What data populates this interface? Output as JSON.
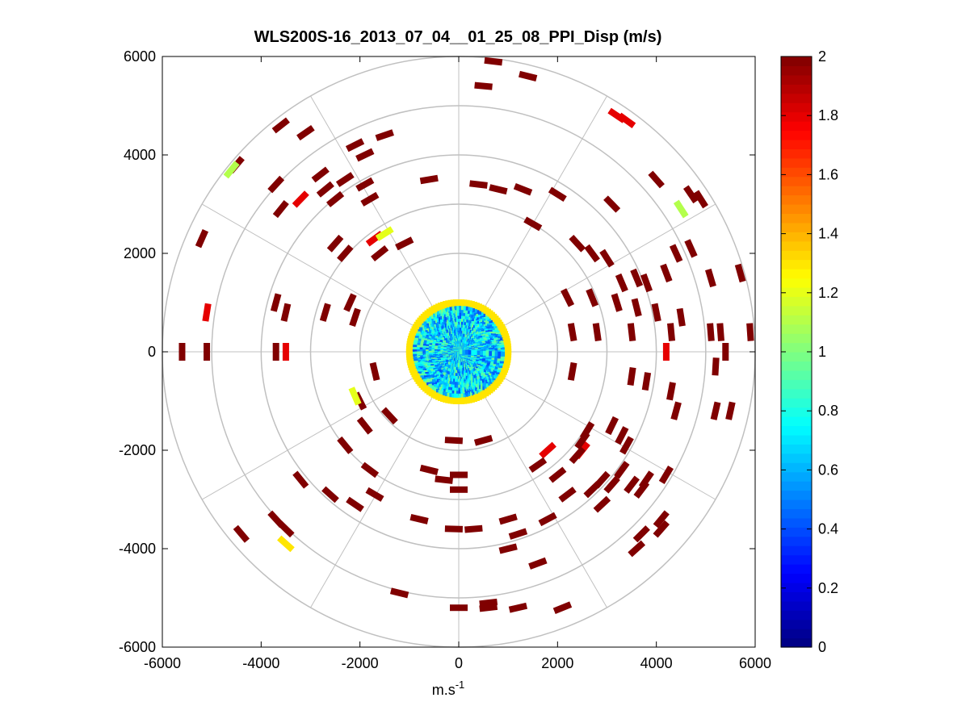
{
  "chart_data": {
    "type": "scatter",
    "title": "WLS200S-16_2013_07_04__01_25_08_PPI_Disp (m/s)",
    "xlabel": "m.s",
    "xlabel_sup": "-1",
    "ylabel": "",
    "xlim": [
      -6000,
      6000
    ],
    "ylim": [
      -6000,
      6000
    ],
    "xticks": [
      -6000,
      -4000,
      -2000,
      0,
      2000,
      4000,
      6000
    ],
    "yticks": [
      -6000,
      -4000,
      -2000,
      0,
      2000,
      4000,
      6000
    ],
    "polar_grid": {
      "rings": [
        1000,
        2000,
        3000,
        4000,
        5000,
        6000
      ],
      "spokes_deg": [
        0,
        30,
        60,
        90,
        120,
        150,
        180,
        210,
        240,
        270,
        300,
        330
      ]
    },
    "colorbar": {
      "min": 0,
      "max": 2,
      "ticks": [
        0,
        0.2,
        0.4,
        0.6,
        0.8,
        1,
        1.2,
        1.4,
        1.6,
        1.8,
        2
      ],
      "tick_labels": [
        "0",
        "0.2",
        "0.4",
        "0.6",
        "0.8",
        "1",
        "1.2",
        "1.4",
        "1.6",
        "1.8",
        "2"
      ],
      "colormap": "jet"
    },
    "near_field": {
      "inner_radius": 900,
      "ring_radius": 1000,
      "typical_value": 0.7
    },
    "points": [
      {
        "x": -5600,
        "y": 0,
        "v": 2
      },
      {
        "x": -5100,
        "y": 0,
        "v": 2
      },
      {
        "x": -3700,
        "y": 0,
        "v": 2
      },
      {
        "x": -3500,
        "y": 0,
        "v": 1.8
      },
      {
        "x": -5200,
        "y": 2300,
        "v": 2
      },
      {
        "x": -5100,
        "y": 800,
        "v": 1.8
      },
      {
        "x": -4500,
        "y": 3800,
        "v": 2
      },
      {
        "x": -4600,
        "y": 3700,
        "v": 1.1
      },
      {
        "x": -3600,
        "y": 4600,
        "v": 2
      },
      {
        "x": -3100,
        "y": 4450,
        "v": 2
      },
      {
        "x": -3200,
        "y": 3100,
        "v": 1.8
      },
      {
        "x": -3700,
        "y": 3400,
        "v": 2
      },
      {
        "x": -3600,
        "y": 2900,
        "v": 2
      },
      {
        "x": -2800,
        "y": 3600,
        "v": 2
      },
      {
        "x": -2700,
        "y": 3300,
        "v": 2
      },
      {
        "x": -2500,
        "y": 3100,
        "v": 2
      },
      {
        "x": -2300,
        "y": 3500,
        "v": 2
      },
      {
        "x": -1900,
        "y": 3400,
        "v": 2
      },
      {
        "x": -1800,
        "y": 3100,
        "v": 2
      },
      {
        "x": -1500,
        "y": 4400,
        "v": 2
      },
      {
        "x": -2100,
        "y": 4200,
        "v": 2
      },
      {
        "x": -1900,
        "y": 4000,
        "v": 2
      },
      {
        "x": -1700,
        "y": 2300,
        "v": 1.8
      },
      {
        "x": -1600,
        "y": 2000,
        "v": 2
      },
      {
        "x": -1500,
        "y": 2400,
        "v": 1.2
      },
      {
        "x": -2500,
        "y": 2200,
        "v": 2
      },
      {
        "x": -2300,
        "y": 2000,
        "v": 2
      },
      {
        "x": -3700,
        "y": 1000,
        "v": 2
      },
      {
        "x": -3500,
        "y": 800,
        "v": 2
      },
      {
        "x": -2700,
        "y": 800,
        "v": 2
      },
      {
        "x": -2200,
        "y": 1000,
        "v": 2
      },
      {
        "x": -2100,
        "y": 700,
        "v": 2
      },
      {
        "x": -1100,
        "y": 2200,
        "v": 2
      },
      {
        "x": -600,
        "y": 3500,
        "v": 2
      },
      {
        "x": 400,
        "y": 3400,
        "v": 2
      },
      {
        "x": 800,
        "y": 3300,
        "v": 2
      },
      {
        "x": 1300,
        "y": 3300,
        "v": 2
      },
      {
        "x": 2000,
        "y": 3200,
        "v": 2
      },
      {
        "x": 3100,
        "y": 3000,
        "v": 2
      },
      {
        "x": 4000,
        "y": 3500,
        "v": 2
      },
      {
        "x": 4500,
        "y": 2900,
        "v": 1.1
      },
      {
        "x": 4700,
        "y": 3200,
        "v": 2
      },
      {
        "x": 4900,
        "y": 3100,
        "v": 2
      },
      {
        "x": 3400,
        "y": 4700,
        "v": 1.8
      },
      {
        "x": 3200,
        "y": 4800,
        "v": 1.8
      },
      {
        "x": 500,
        "y": 5400,
        "v": 2
      },
      {
        "x": 700,
        "y": 5900,
        "v": 2
      },
      {
        "x": 1400,
        "y": 5600,
        "v": 2
      },
      {
        "x": 1500,
        "y": 2600,
        "v": 2
      },
      {
        "x": 2400,
        "y": 2200,
        "v": 2
      },
      {
        "x": 2700,
        "y": 2000,
        "v": 2
      },
      {
        "x": 3000,
        "y": 1900,
        "v": 2
      },
      {
        "x": 3300,
        "y": 1400,
        "v": 2
      },
      {
        "x": 3600,
        "y": 1500,
        "v": 2
      },
      {
        "x": 3800,
        "y": 1400,
        "v": 2
      },
      {
        "x": 4200,
        "y": 1600,
        "v": 2
      },
      {
        "x": 4400,
        "y": 2000,
        "v": 2
      },
      {
        "x": 4700,
        "y": 2100,
        "v": 2
      },
      {
        "x": 5100,
        "y": 1500,
        "v": 2
      },
      {
        "x": 5700,
        "y": 1600,
        "v": 2
      },
      {
        "x": 2200,
        "y": 1100,
        "v": 2
      },
      {
        "x": 2700,
        "y": 1100,
        "v": 2
      },
      {
        "x": 3200,
        "y": 1000,
        "v": 2
      },
      {
        "x": 3600,
        "y": 900,
        "v": 2
      },
      {
        "x": 4000,
        "y": 800,
        "v": 2
      },
      {
        "x": 4500,
        "y": 700,
        "v": 2
      },
      {
        "x": 5100,
        "y": 400,
        "v": 2
      },
      {
        "x": 5300,
        "y": 400,
        "v": 2
      },
      {
        "x": 5900,
        "y": 400,
        "v": 2
      },
      {
        "x": 2300,
        "y": 400,
        "v": 2
      },
      {
        "x": 2800,
        "y": 400,
        "v": 2
      },
      {
        "x": 3500,
        "y": 400,
        "v": 2
      },
      {
        "x": 4200,
        "y": 0,
        "v": 1.8
      },
      {
        "x": 4300,
        "y": 400,
        "v": 2
      },
      {
        "x": 5400,
        "y": 0,
        "v": 2
      },
      {
        "x": 2300,
        "y": -400,
        "v": 2
      },
      {
        "x": 3500,
        "y": -500,
        "v": 2
      },
      {
        "x": 3800,
        "y": -600,
        "v": 2
      },
      {
        "x": 5200,
        "y": -300,
        "v": 2
      },
      {
        "x": 4300,
        "y": -800,
        "v": 2
      },
      {
        "x": 4400,
        "y": -1200,
        "v": 2
      },
      {
        "x": 5500,
        "y": -1200,
        "v": 2
      },
      {
        "x": 5200,
        "y": -1200,
        "v": 2
      },
      {
        "x": 2600,
        "y": -1600,
        "v": 2
      },
      {
        "x": 3100,
        "y": -1500,
        "v": 2
      },
      {
        "x": 3300,
        "y": -1700,
        "v": 2
      },
      {
        "x": 3400,
        "y": -1900,
        "v": 2
      },
      {
        "x": 2500,
        "y": -2000,
        "v": 1.8
      },
      {
        "x": 2400,
        "y": -2100,
        "v": 2
      },
      {
        "x": 1800,
        "y": -2000,
        "v": 1.8
      },
      {
        "x": 1600,
        "y": -2300,
        "v": 2
      },
      {
        "x": 2000,
        "y": -2500,
        "v": 2
      },
      {
        "x": 2200,
        "y": -2900,
        "v": 2
      },
      {
        "x": 2700,
        "y": -2800,
        "v": 2
      },
      {
        "x": 2900,
        "y": -2600,
        "v": 2
      },
      {
        "x": 3300,
        "y": -2400,
        "v": 2
      },
      {
        "x": 3500,
        "y": -2700,
        "v": 2
      },
      {
        "x": 3700,
        "y": -2800,
        "v": 2
      },
      {
        "x": 3800,
        "y": -2600,
        "v": 2
      },
      {
        "x": 4200,
        "y": -2500,
        "v": 2
      },
      {
        "x": 4100,
        "y": -3400,
        "v": 2
      },
      {
        "x": 4100,
        "y": -3600,
        "v": 2
      },
      {
        "x": 3700,
        "y": -3700,
        "v": 2
      },
      {
        "x": 3600,
        "y": -4000,
        "v": 2
      },
      {
        "x": 1200,
        "y": -3700,
        "v": 2
      },
      {
        "x": 1000,
        "y": -3400,
        "v": 2
      },
      {
        "x": 1800,
        "y": -3400,
        "v": 2
      },
      {
        "x": 3100,
        "y": -2700,
        "v": 2
      },
      {
        "x": 2900,
        "y": -3100,
        "v": 2
      },
      {
        "x": 1000,
        "y": -4000,
        "v": 2
      },
      {
        "x": 1600,
        "y": -4300,
        "v": 2
      },
      {
        "x": 300,
        "y": -3600,
        "v": 2
      },
      {
        "x": -100,
        "y": -3600,
        "v": 2
      },
      {
        "x": -800,
        "y": -3400,
        "v": 2
      },
      {
        "x": 0,
        "y": -2800,
        "v": 2
      },
      {
        "x": -600,
        "y": -2400,
        "v": 2
      },
      {
        "x": -300,
        "y": -2600,
        "v": 2
      },
      {
        "x": 0,
        "y": -2500,
        "v": 2
      },
      {
        "x": -1800,
        "y": -2400,
        "v": 2
      },
      {
        "x": -1700,
        "y": -2900,
        "v": 2
      },
      {
        "x": -2600,
        "y": -2900,
        "v": 2
      },
      {
        "x": -2100,
        "y": -3100,
        "v": 2
      },
      {
        "x": -3200,
        "y": -2600,
        "v": 2
      },
      {
        "x": -3700,
        "y": -3400,
        "v": 2
      },
      {
        "x": -3500,
        "y": -3600,
        "v": 2
      },
      {
        "x": -3500,
        "y": -3900,
        "v": 1.3
      },
      {
        "x": -4400,
        "y": -3700,
        "v": 2
      },
      {
        "x": -1200,
        "y": -4900,
        "v": 2
      },
      {
        "x": 0,
        "y": -5200,
        "v": 2
      },
      {
        "x": 600,
        "y": -5100,
        "v": 2
      },
      {
        "x": 600,
        "y": -5200,
        "v": 2
      },
      {
        "x": 1200,
        "y": -5200,
        "v": 2
      },
      {
        "x": 2100,
        "y": -5200,
        "v": 2
      },
      {
        "x": -2300,
        "y": -1900,
        "v": 2
      },
      {
        "x": -1900,
        "y": -1500,
        "v": 2
      },
      {
        "x": -1400,
        "y": -1300,
        "v": 2
      },
      {
        "x": -2000,
        "y": -1000,
        "v": 2
      },
      {
        "x": -2100,
        "y": -900,
        "v": 1.2
      },
      {
        "x": -1700,
        "y": -400,
        "v": 2
      },
      {
        "x": 500,
        "y": -1800,
        "v": 2
      },
      {
        "x": -100,
        "y": -1800,
        "v": 2
      },
      {
        "x": 2500,
        "y": -1800,
        "v": 2
      }
    ]
  }
}
